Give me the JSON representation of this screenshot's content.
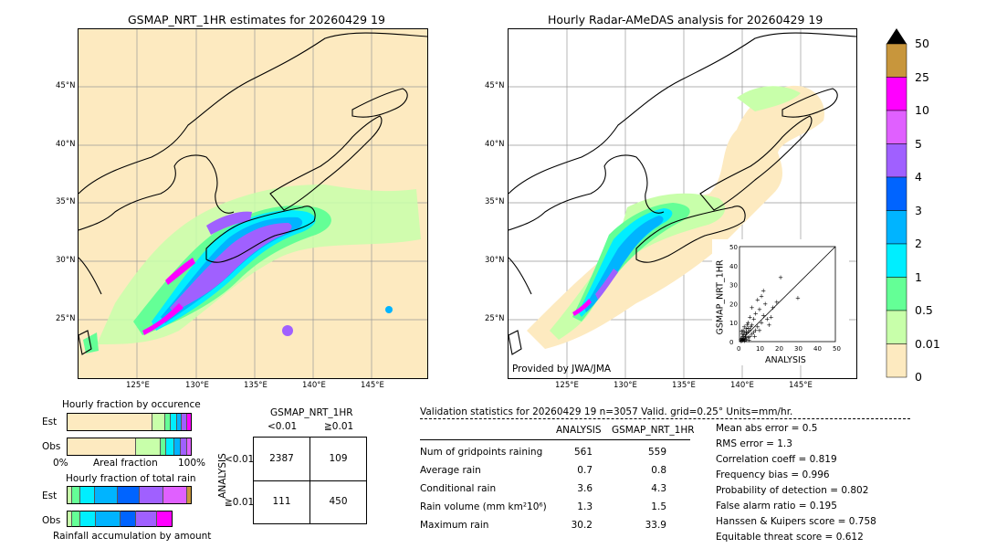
{
  "left_map": {
    "title": "GSMAP_NRT_1HR estimates for 20260429 19",
    "lat_ticks": [
      "45°N",
      "40°N",
      "35°N",
      "30°N",
      "25°N"
    ],
    "lon_ticks": [
      "125°E",
      "130°E",
      "135°E",
      "140°E",
      "145°E"
    ]
  },
  "right_map": {
    "title": "Hourly Radar-AMeDAS analysis for 20260429 19",
    "lat_ticks": [
      "45°N",
      "40°N",
      "35°N",
      "30°N",
      "25°N"
    ],
    "lon_ticks": [
      "125°E",
      "130°E",
      "135°E",
      "140°E",
      "145°E"
    ],
    "credit": "Provided by JWA/JMA"
  },
  "colorbar": {
    "labels": [
      "50",
      "25",
      "10",
      "5",
      "4",
      "3",
      "2",
      "1",
      "0.5",
      "0.01",
      "0"
    ],
    "colors": [
      "#c8963c",
      "#ff00ff",
      "#e060ff",
      "#a060ff",
      "#0064ff",
      "#00b4ff",
      "#00eeff",
      "#64ff96",
      "#c8ffaa",
      "#fdeac0"
    ]
  },
  "scatter": {
    "ylabel": "GSMAP_NRT_1HR",
    "xlabel": "ANALYSIS",
    "ticks": [
      "0",
      "10",
      "20",
      "30",
      "40",
      "50"
    ]
  },
  "occurrence": {
    "title": "Hourly fraction by occurence",
    "rows": [
      "Est",
      "Obs"
    ],
    "axis_left": "0%",
    "axis_mid": "Areal fraction",
    "axis_right": "100%"
  },
  "total_rain": {
    "title": "Hourly fraction of total rain",
    "rows": [
      "Est",
      "Obs"
    ],
    "footer": "Rainfall accumulation by amount"
  },
  "contingency": {
    "title": "GSMAP_NRT_1HR",
    "col_headers": [
      "<0.01",
      "≧0.01"
    ],
    "row_label": "ANALYSIS",
    "row_headers": [
      "<0.01",
      "≧0.01"
    ],
    "cells": [
      [
        "2387",
        "109"
      ],
      [
        "111",
        "450"
      ]
    ]
  },
  "validation": {
    "header": "Validation statistics for 20260429 19  n=3057 Valid. grid=0.25° Units=mm/hr.",
    "col_analysis": "ANALYSIS",
    "col_gsmap": "GSMAP_NRT_1HR",
    "rows": [
      {
        "label": "Num of gridpoints raining",
        "analysis": "561",
        "gsmap": "559"
      },
      {
        "label": "Average rain",
        "analysis": "0.7",
        "gsmap": "0.8"
      },
      {
        "label": "Conditional rain",
        "analysis": "3.6",
        "gsmap": "4.3"
      },
      {
        "label": "Rain volume (mm km²10⁶)",
        "analysis": "1.3",
        "gsmap": "1.5"
      },
      {
        "label": "Maximum rain",
        "analysis": "30.2",
        "gsmap": "33.9"
      }
    ],
    "scores": [
      "Mean abs error =    0.5",
      "RMS error =    1.3",
      "Correlation coeff =  0.819",
      "Frequency bias =  0.996",
      "Probability of detection =  0.802",
      "False alarm ratio =  0.195",
      "Hanssen & Kuipers score =  0.758",
      "Equitable threat score =  0.612"
    ]
  },
  "chart_data": [
    {
      "type": "scatter",
      "xlabel": "ANALYSIS",
      "ylabel": "GSMAP_NRT_1HR",
      "xlim": [
        0,
        50
      ],
      "ylim": [
        0,
        50
      ],
      "points": [
        [
          0.5,
          0.3
        ],
        [
          1,
          0.8
        ],
        [
          1.5,
          1.2
        ],
        [
          2,
          1.5
        ],
        [
          0.8,
          2
        ],
        [
          1.2,
          3
        ],
        [
          2.5,
          2
        ],
        [
          3,
          1
        ],
        [
          3,
          4
        ],
        [
          4,
          2.5
        ],
        [
          2,
          5
        ],
        [
          1,
          4
        ],
        [
          4,
          5
        ],
        [
          5,
          3
        ],
        [
          5,
          6
        ],
        [
          6,
          4
        ],
        [
          3,
          7
        ],
        [
          7,
          5
        ],
        [
          2,
          8
        ],
        [
          6,
          9
        ],
        [
          8,
          6
        ],
        [
          4,
          10
        ],
        [
          9,
          8
        ],
        [
          7,
          12
        ],
        [
          10,
          6
        ],
        [
          5,
          13
        ],
        [
          11,
          10
        ],
        [
          12,
          14
        ],
        [
          8,
          15
        ],
        [
          14,
          12
        ],
        [
          10,
          17
        ],
        [
          15,
          9
        ],
        [
          6,
          18
        ],
        [
          13,
          20
        ],
        [
          16,
          13
        ],
        [
          9,
          22
        ],
        [
          17,
          18
        ],
        [
          11,
          24
        ],
        [
          12,
          27
        ],
        [
          19,
          21
        ],
        [
          21,
          34
        ],
        [
          30,
          23
        ],
        [
          3,
          1.5
        ],
        [
          1.5,
          6
        ],
        [
          0.3,
          1.5
        ],
        [
          2.2,
          0.4
        ],
        [
          4.5,
          1
        ],
        [
          0.6,
          5.5
        ],
        [
          3.5,
          9
        ],
        [
          7.5,
          3
        ],
        [
          1,
          1
        ],
        [
          2,
          2
        ],
        [
          1.8,
          3.5
        ],
        [
          0.4,
          0.7
        ],
        [
          2.8,
          2.8
        ],
        [
          3.2,
          5.3
        ],
        [
          5.5,
          8
        ],
        [
          4.2,
          7.2
        ]
      ]
    },
    {
      "type": "table",
      "title": "Validation statistics for 20260429 19  n=3057 Valid. grid=0.25° Units=mm/hr.",
      "columns": [
        "",
        "ANALYSIS",
        "GSMAP_NRT_1HR"
      ],
      "rows": [
        [
          "Num of gridpoints raining",
          561,
          559
        ],
        [
          "Average rain",
          0.7,
          0.8
        ],
        [
          "Conditional rain",
          3.6,
          4.3
        ],
        [
          "Rain volume (mm km²10⁶)",
          1.3,
          1.5
        ],
        [
          "Maximum rain",
          30.2,
          33.9
        ]
      ]
    },
    {
      "type": "table",
      "title": "GSMAP_NRT_1HR",
      "columns": [
        "",
        "<0.01",
        "≧0.01"
      ],
      "rows": [
        [
          "<0.01",
          2387,
          109
        ],
        [
          "≧0.01",
          111,
          450
        ]
      ]
    }
  ]
}
